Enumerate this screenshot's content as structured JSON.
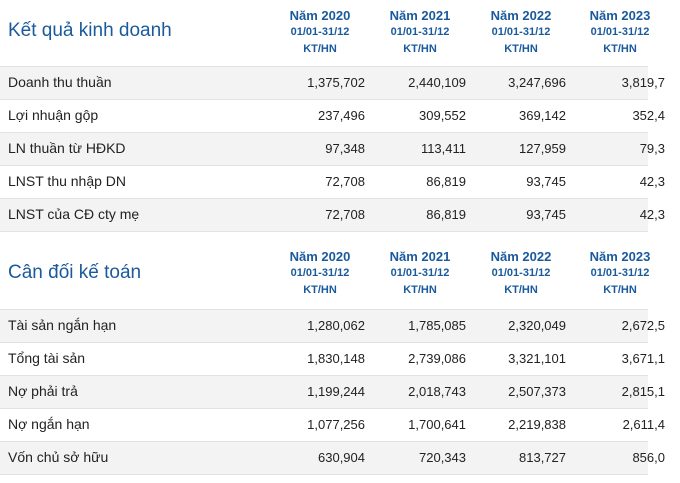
{
  "columns": [
    {
      "year": "Năm 2020",
      "range": "01/01-31/12",
      "type": "KT/HN"
    },
    {
      "year": "Năm 2021",
      "range": "01/01-31/12",
      "type": "KT/HN"
    },
    {
      "year": "Năm 2022",
      "range": "01/01-31/12",
      "type": "KT/HN"
    },
    {
      "year": "Năm 2023",
      "range": "01/01-31/12",
      "type": "KT/HN"
    }
  ],
  "kqkd": {
    "title": "Kết quả kinh doanh",
    "rows": [
      {
        "label": "Doanh thu thuần",
        "values": [
          "1,375,702",
          "2,440,109",
          "3,247,696",
          "3,819,7"
        ]
      },
      {
        "label": "Lợi nhuận gộp",
        "values": [
          "237,496",
          "309,552",
          "369,142",
          "352,4"
        ]
      },
      {
        "label": "LN thuần từ HĐKD",
        "values": [
          "97,348",
          "113,411",
          "127,959",
          "79,3"
        ]
      },
      {
        "label": "LNST thu nhập DN",
        "values": [
          "72,708",
          "86,819",
          "93,745",
          "42,3"
        ]
      },
      {
        "label": "LNST của CĐ cty mẹ",
        "values": [
          "72,708",
          "86,819",
          "93,745",
          "42,3"
        ]
      }
    ]
  },
  "cdkt": {
    "title": "Cân đối kế toán",
    "rows": [
      {
        "label": "Tài sản ngắn hạn",
        "values": [
          "1,280,062",
          "1,785,085",
          "2,320,049",
          "2,672,5"
        ]
      },
      {
        "label": "Tổng tài sản",
        "values": [
          "1,830,148",
          "2,739,086",
          "3,321,101",
          "3,671,1"
        ]
      },
      {
        "label": "Nợ phải trả",
        "values": [
          "1,199,244",
          "2,018,743",
          "2,507,373",
          "2,815,1"
        ]
      },
      {
        "label": "Nợ ngắn hạn",
        "values": [
          "1,077,256",
          "1,700,641",
          "2,219,838",
          "2,611,4"
        ]
      },
      {
        "label": "Vốn chủ sở hữu",
        "values": [
          "630,904",
          "720,343",
          "813,727",
          "856,0"
        ]
      }
    ]
  }
}
